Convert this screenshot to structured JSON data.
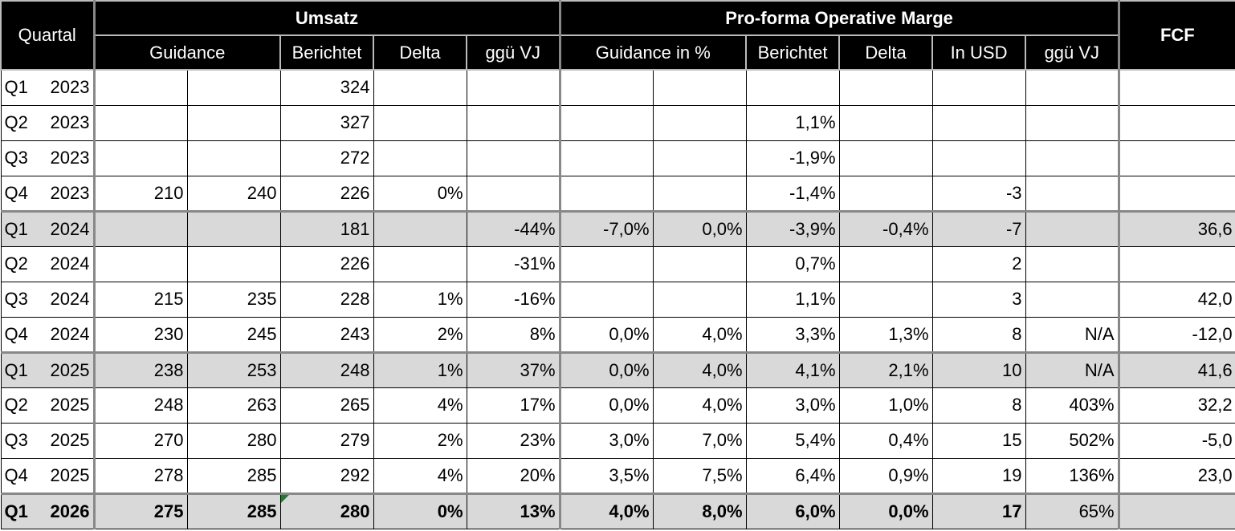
{
  "header": {
    "quartal": "Quartal",
    "groups": [
      "Umsatz",
      "Pro-forma Operative Marge",
      "FCF"
    ],
    "subheaders": [
      "Guidance",
      "Berichtet",
      "Delta",
      "ggü VJ",
      "Guidance in %",
      "Berichtet",
      "Delta",
      "In USD",
      "ggü VJ"
    ]
  },
  "table": {
    "rows": [
      [
        "Q1",
        "2023",
        null,
        null,
        "324",
        null,
        null,
        null,
        null,
        null,
        null,
        null,
        null,
        null
      ],
      [
        "Q2",
        "2023",
        null,
        null,
        "327",
        null,
        null,
        null,
        null,
        "1,1%",
        null,
        null,
        null,
        null
      ],
      [
        "Q3",
        "2023",
        null,
        null,
        "272",
        null,
        null,
        null,
        null,
        "-1,9%",
        null,
        null,
        null,
        null
      ],
      [
        "Q4",
        "2023",
        "210",
        "240",
        "226",
        "0%",
        null,
        null,
        null,
        "-1,4%",
        null,
        "-3",
        null,
        null
      ],
      [
        "Q1",
        "2024",
        null,
        null,
        "181",
        null,
        "-44%",
        "-7,0%",
        "0,0%",
        "-3,9%",
        "-0,4%",
        "-7",
        null,
        "36,6"
      ],
      [
        "Q2",
        "2024",
        null,
        null,
        "226",
        null,
        "-31%",
        null,
        null,
        "0,7%",
        null,
        "2",
        null,
        null
      ],
      [
        "Q3",
        "2024",
        "215",
        "235",
        "228",
        "1%",
        "-16%",
        null,
        null,
        "1,1%",
        null,
        "3",
        null,
        "42,0"
      ],
      [
        "Q4",
        "2024",
        "230",
        "245",
        "243",
        "2%",
        "8%",
        "0,0%",
        "4,0%",
        "3,3%",
        "1,3%",
        "8",
        "N/A",
        "-12,0"
      ],
      [
        "Q1",
        "2025",
        "238",
        "253",
        "248",
        "1%",
        "37%",
        "0,0%",
        "4,0%",
        "4,1%",
        "2,1%",
        "10",
        "N/A",
        "41,6"
      ],
      [
        "Q2",
        "2025",
        "248",
        "263",
        "265",
        "4%",
        "17%",
        "0,0%",
        "4,0%",
        "3,0%",
        "1,0%",
        "8",
        "403%",
        "32,2"
      ],
      [
        "Q3",
        "2025",
        "270",
        "280",
        "279",
        "2%",
        "23%",
        "3,0%",
        "7,0%",
        "5,4%",
        "0,4%",
        "15",
        "502%",
        "-5,0"
      ],
      [
        "Q4",
        "2025",
        "278",
        "285",
        "292",
        "4%",
        "20%",
        "3,5%",
        "7,5%",
        "6,4%",
        "0,9%",
        "19",
        "136%",
        "23,0"
      ],
      [
        "Q1",
        "2026",
        "275",
        "285",
        "280",
        "0%",
        "13%",
        "4,0%",
        "8,0%",
        "6,0%",
        "0,0%",
        "17",
        "65%",
        null
      ]
    ]
  }
}
